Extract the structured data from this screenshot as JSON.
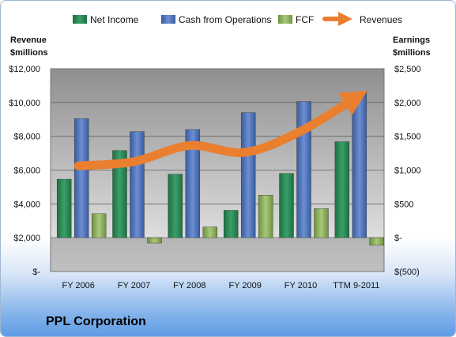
{
  "caption": "PPL Corporation",
  "chart_data": {
    "type": "bar",
    "categories": [
      "FY 2006",
      "FY 2007",
      "FY 2008",
      "FY 2009",
      "FY 2010",
      "TTM 9-2011"
    ],
    "left_axis": {
      "title_line1": "Revenue",
      "title_line2": "$millions",
      "range": [
        0,
        12000
      ],
      "tick_labels": [
        "$-",
        "$2,000",
        "$4,000",
        "$6,000",
        "$8,000",
        "$10,000",
        "$12,000"
      ]
    },
    "right_axis": {
      "title_line1": "Earnings",
      "title_line2": "$millions",
      "range": [
        -500,
        2500
      ],
      "tick_labels": [
        "$(500)",
        "$-",
        "$500",
        "$1,000",
        "$1,500",
        "$2,000",
        "$2,500"
      ]
    },
    "series": [
      {
        "name": "Net Income",
        "axis": "right",
        "kind": "bar",
        "color": "#2e8b57",
        "values": [
          865,
          1290,
          940,
          405,
          950,
          1420
        ]
      },
      {
        "name": "Cash from Operations",
        "axis": "right",
        "kind": "bar",
        "color": "#4f72b8",
        "values": [
          1760,
          1570,
          1600,
          1850,
          2015,
          2150
        ]
      },
      {
        "name": "FCF",
        "axis": "right",
        "kind": "bar",
        "color": "#8fb25a",
        "values": [
          355,
          -80,
          160,
          630,
          430,
          -110
        ]
      },
      {
        "name": "Revenues",
        "axis": "left",
        "kind": "line",
        "color": "#ea7f2f",
        "values": [
          6250,
          6500,
          7450,
          7050,
          8300,
          10300
        ]
      }
    ],
    "legend_position": "top",
    "grid": true
  }
}
